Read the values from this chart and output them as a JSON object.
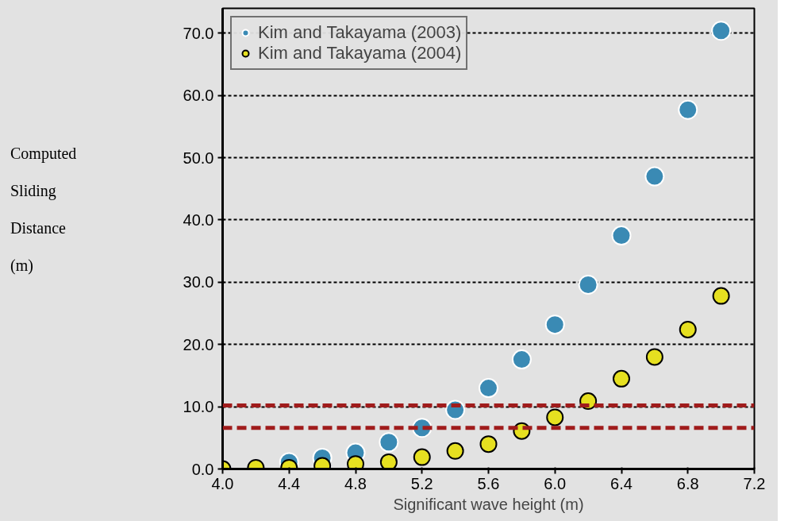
{
  "chart_data": {
    "type": "scatter",
    "xlabel": "Significant wave height (m)",
    "ylabel": "Computed Sliding Distance (m)",
    "x": [
      4.0,
      4.2,
      4.4,
      4.6,
      4.8,
      5.0,
      5.2,
      5.4,
      5.6,
      5.8,
      6.0,
      6.2,
      6.4,
      6.6,
      6.8,
      7.0
    ],
    "series": [
      {
        "name": "Kim and Takayama (2003)",
        "color": "#3a8ab4",
        "values": [
          null,
          null,
          1.1,
          1.8,
          2.6,
          4.3,
          6.6,
          9.5,
          13.0,
          17.6,
          23.2,
          29.6,
          37.5,
          47.0,
          57.7,
          70.4
        ]
      },
      {
        "name": "Kim and Takayama (2004)",
        "color": "#e6e020",
        "values": [
          0.0,
          0.2,
          0.2,
          0.5,
          0.8,
          1.1,
          1.9,
          2.9,
          4.0,
          6.1,
          8.3,
          10.9,
          14.5,
          18.0,
          22.4,
          27.8
        ]
      }
    ],
    "marker": "circle",
    "xlim": [
      4.0,
      7.2
    ],
    "xticks": [
      {
        "value": 4.0,
        "label": "4.0"
      },
      4.4,
      4.8,
      5.2,
      5.6,
      {
        "value": 6.0,
        "label": "6.0"
      },
      6.4,
      6.8,
      7.2
    ],
    "ylim": [
      0,
      74
    ],
    "yticks": [
      {
        "value": 0,
        "label": "0.0"
      },
      {
        "value": 10,
        "label": "10.0"
      },
      {
        "value": 20,
        "label": "20.0"
      },
      {
        "value": 30,
        "label": "30.0"
      },
      {
        "value": 40,
        "label": "40.0"
      },
      {
        "value": 50,
        "label": "50.0"
      },
      {
        "value": 60,
        "label": "60.0"
      },
      {
        "value": 70,
        "label": "70.0"
      }
    ],
    "grid": "y",
    "legend": "top left",
    "ref_lines": [
      {
        "axis": "y",
        "value": 10.2,
        "color": "#a01c1c",
        "line_style": "dashed"
      },
      {
        "axis": "y",
        "value": 6.6,
        "color": "#a01c1c",
        "line_style": "dashed"
      }
    ]
  }
}
